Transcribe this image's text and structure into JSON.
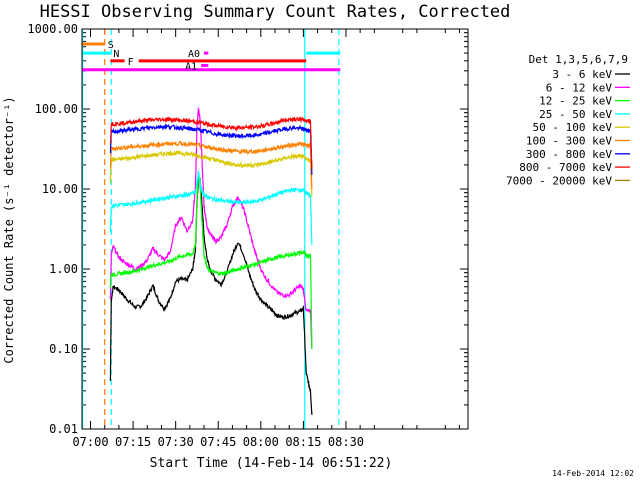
{
  "chart_data": {
    "type": "line",
    "title": "HESSI Observing Summary Count Rates, Corrected",
    "xlabel": "Start Time (14-Feb-14 06:51:22)",
    "ylabel": "Corrected Count Rate (s⁻¹ detector⁻¹)",
    "yscale": "log",
    "ylim": [
      0.01,
      1000
    ],
    "xlim_minutes": [
      -3,
      133
    ],
    "y_tick_labels": [
      "1000.00",
      "100.00",
      "10.00",
      "1.00",
      "0.10",
      "0.01"
    ],
    "x_tick_labels": [
      {
        "label": "07:00",
        "t": 0
      },
      {
        "label": "07:15",
        "t": 15
      },
      {
        "label": "07:30",
        "t": 30
      },
      {
        "label": "07:45",
        "t": 45
      },
      {
        "label": "08:00",
        "t": 60
      },
      {
        "label": "08:15",
        "t": 75
      },
      {
        "label": "08:30",
        "t": 90
      }
    ],
    "legend_title": "Det 1,3,5,6,7,9",
    "legend_placement": "right",
    "series": [
      {
        "name": "3 - 6 keV",
        "color": "#000000",
        "x": [
          7,
          7.3,
          8,
          10,
          12,
          14,
          16,
          18,
          20,
          22,
          24,
          26,
          28,
          30,
          32,
          34,
          36,
          37,
          37.5,
          38,
          38.5,
          39,
          39.5,
          40,
          41,
          42,
          44,
          46,
          48,
          50,
          52,
          54,
          56,
          58,
          60,
          62,
          64,
          66,
          68,
          70,
          72,
          74,
          75,
          76,
          77,
          77.5,
          78
        ],
        "y": [
          0.04,
          0.4,
          0.6,
          0.55,
          0.45,
          0.38,
          0.33,
          0.35,
          0.45,
          0.62,
          0.4,
          0.32,
          0.42,
          0.7,
          0.75,
          0.72,
          1.0,
          1.8,
          7,
          13,
          14,
          9,
          5,
          2.5,
          1.4,
          1.0,
          0.75,
          0.65,
          0.9,
          1.5,
          2.2,
          1.5,
          0.85,
          0.55,
          0.42,
          0.35,
          0.3,
          0.26,
          0.25,
          0.26,
          0.28,
          0.3,
          0.32,
          0.05,
          0.035,
          0.03,
          0.015
        ]
      },
      {
        "name": "6 - 12 keV",
        "color": "#ff00ff",
        "x": [
          7,
          7.3,
          8,
          10,
          12,
          14,
          16,
          18,
          20,
          22,
          24,
          26,
          28,
          30,
          32,
          34,
          36,
          37,
          37.5,
          38,
          38.5,
          39,
          39.5,
          40,
          41,
          42,
          44,
          46,
          48,
          50,
          52,
          54,
          56,
          58,
          60,
          62,
          64,
          66,
          68,
          70,
          72,
          74,
          75,
          76,
          77,
          77.5,
          78
        ],
        "y": [
          0.4,
          1.5,
          1.9,
          1.4,
          1.2,
          1.1,
          1.0,
          1.1,
          1.3,
          1.8,
          1.5,
          1.3,
          1.6,
          3.5,
          4.5,
          3,
          4,
          11,
          60,
          100,
          80,
          40,
          15,
          6,
          3.5,
          2.8,
          2.2,
          2.5,
          3.5,
          6,
          8,
          5.5,
          3,
          1.6,
          1.0,
          0.75,
          0.6,
          0.5,
          0.47,
          0.47,
          0.55,
          0.62,
          0.55,
          0.3,
          0.3,
          0.3,
          0.1
        ]
      },
      {
        "name": "12 - 25 keV",
        "color": "#00ff00",
        "x": [
          7,
          7.3,
          8,
          10,
          12,
          14,
          16,
          18,
          20,
          22,
          24,
          26,
          28,
          30,
          32,
          34,
          36,
          37,
          37.5,
          38,
          38.5,
          39,
          39.5,
          40,
          41,
          42,
          44,
          46,
          48,
          50,
          52,
          54,
          56,
          58,
          60,
          62,
          64,
          66,
          68,
          70,
          72,
          74,
          75,
          76,
          77,
          77.5,
          78
        ],
        "y": [
          0.6,
          0.85,
          0.85,
          0.87,
          0.9,
          0.92,
          0.95,
          1.0,
          1.05,
          1.1,
          1.15,
          1.2,
          1.25,
          1.35,
          1.45,
          1.5,
          1.55,
          2,
          8,
          16,
          12,
          6,
          3,
          1.5,
          1.05,
          0.95,
          0.9,
          0.88,
          0.9,
          0.95,
          1.0,
          1.05,
          1.1,
          1.15,
          1.2,
          1.28,
          1.35,
          1.4,
          1.45,
          1.5,
          1.55,
          1.6,
          1.6,
          1.5,
          1.45,
          1.5,
          0.1
        ]
      },
      {
        "name": "25 - 50 keV",
        "color": "#00ffff",
        "x": [
          7,
          7.3,
          8,
          10,
          12,
          14,
          16,
          18,
          20,
          22,
          24,
          26,
          28,
          30,
          32,
          34,
          36,
          37,
          37.5,
          38,
          38.5,
          39,
          39.5,
          40,
          41,
          42,
          44,
          46,
          48,
          50,
          52,
          54,
          56,
          58,
          60,
          62,
          64,
          66,
          68,
          70,
          72,
          74,
          75,
          76,
          77,
          77.5,
          78
        ],
        "y": [
          3,
          6,
          6.2,
          6.3,
          6.4,
          6.5,
          6.7,
          6.9,
          7.1,
          7.3,
          7.5,
          7.7,
          7.9,
          8.1,
          8.3,
          8.5,
          8.8,
          9,
          12,
          16,
          13,
          10,
          9,
          8.5,
          8,
          7.7,
          7.4,
          7.2,
          7.0,
          6.9,
          6.8,
          6.8,
          6.9,
          7.0,
          7.3,
          7.7,
          8.2,
          8.7,
          9.2,
          9.6,
          9.8,
          9.7,
          9.5,
          9.0,
          8.5,
          8.0,
          2
        ]
      },
      {
        "name": "50 - 100 keV",
        "color": "#d8c800",
        "x": [
          7,
          7.3,
          8,
          10,
          12,
          14,
          16,
          18,
          20,
          22,
          24,
          26,
          28,
          30,
          32,
          34,
          36,
          38,
          40,
          42,
          44,
          46,
          48,
          50,
          52,
          54,
          56,
          58,
          60,
          62,
          64,
          66,
          68,
          70,
          72,
          74,
          75,
          76,
          77,
          77.5,
          78
        ],
        "y": [
          12,
          23,
          23,
          23.5,
          24,
          24.5,
          25,
          25.5,
          26,
          26.5,
          27,
          27.5,
          28,
          28,
          28,
          27.5,
          27,
          26,
          25,
          24,
          23,
          22,
          21,
          20.5,
          20,
          19.8,
          19.8,
          20,
          20.5,
          21,
          22,
          23,
          24,
          25,
          25.5,
          25.5,
          25,
          24,
          23,
          22,
          8
        ]
      },
      {
        "name": "100 - 300 keV",
        "color": "#ff8000",
        "x": [
          7,
          7.3,
          8,
          10,
          12,
          14,
          16,
          18,
          20,
          22,
          24,
          26,
          28,
          30,
          32,
          34,
          36,
          38,
          40,
          42,
          44,
          46,
          48,
          50,
          52,
          54,
          56,
          58,
          60,
          62,
          64,
          66,
          68,
          70,
          72,
          74,
          75,
          76,
          77,
          77.5,
          78
        ],
        "y": [
          18,
          32,
          32,
          32.5,
          33,
          33.5,
          34,
          34.5,
          35,
          35.5,
          36,
          36.5,
          37,
          37,
          37,
          36.5,
          36,
          35,
          34,
          33,
          32,
          31,
          30.5,
          30,
          29.5,
          29.3,
          29.3,
          29.5,
          30,
          31,
          32,
          33,
          34,
          35,
          36,
          36.5,
          36,
          35.5,
          35,
          34,
          10
        ]
      },
      {
        "name": "300 - 800 keV",
        "color": "#0000ff",
        "x": [
          7,
          7.3,
          8,
          10,
          12,
          14,
          16,
          18,
          20,
          22,
          24,
          26,
          28,
          30,
          32,
          34,
          36,
          38,
          40,
          42,
          44,
          46,
          48,
          50,
          52,
          54,
          56,
          58,
          60,
          62,
          64,
          66,
          68,
          70,
          72,
          74,
          75,
          76,
          77,
          77.5,
          78
        ],
        "y": [
          28,
          52,
          52,
          53,
          54,
          55,
          56,
          57,
          58,
          59,
          60,
          60,
          60,
          59,
          58,
          57,
          56,
          55,
          53,
          51,
          49,
          48,
          47,
          46.5,
          46,
          46,
          46.5,
          47,
          48,
          50,
          52,
          54,
          56,
          57.5,
          58,
          57,
          56,
          55,
          54,
          53,
          15
        ]
      },
      {
        "name": "800 - 7000 keV",
        "color": "#ff0000",
        "x": [
          7,
          7.3,
          8,
          10,
          12,
          14,
          16,
          18,
          20,
          22,
          24,
          26,
          28,
          30,
          32,
          34,
          36,
          38,
          40,
          42,
          44,
          46,
          48,
          50,
          52,
          54,
          56,
          58,
          60,
          62,
          64,
          66,
          68,
          70,
          72,
          74,
          75,
          76,
          77,
          77.5,
          78
        ],
        "y": [
          35,
          65,
          65,
          66,
          67,
          68,
          70,
          71,
          72,
          73,
          74,
          74,
          74,
          73,
          72,
          71,
          70,
          68,
          66,
          64,
          62,
          61,
          60,
          59,
          58.5,
          58.5,
          59,
          60,
          61,
          63,
          66,
          69,
          72,
          74,
          75,
          74,
          73,
          72,
          71,
          70,
          18
        ]
      },
      {
        "name": "7000 - 20000 keV",
        "color": "#a08000",
        "x": [],
        "y": []
      }
    ],
    "attenuator_states": [
      {
        "label": "A0",
        "color": "#ff00ff",
        "t_start": 40,
        "t_end": 41.5,
        "level": 500
      },
      {
        "label": "A1",
        "color": "#ff00ff",
        "t_start": 39,
        "t_end": 41.5,
        "level": 350
      }
    ],
    "flag_bars": [
      {
        "label": "S",
        "color": "#ff7f00",
        "segments": [
          [
            -3,
            5
          ]
        ],
        "level": 650
      },
      {
        "label": "N",
        "color": "#00ffff",
        "segments": [
          [
            -3,
            7
          ],
          [
            76,
            88
          ]
        ],
        "level": 500
      },
      {
        "label": "F",
        "color": "#ff0000",
        "segments": [
          [
            7,
            12
          ],
          [
            17,
            76
          ]
        ],
        "level": 400
      },
      {
        "label": "",
        "color": "#ff00ff",
        "segments": [
          [
            -3,
            88
          ]
        ],
        "level": 310
      }
    ],
    "vlines": [
      {
        "t": 5,
        "color": "#ff7f00",
        "style": "dashed"
      },
      {
        "t": 7.3,
        "color": "#00ffff",
        "style": "dashed"
      },
      {
        "t": 75.5,
        "color": "#00ffff",
        "style": "solid"
      },
      {
        "t": 87.5,
        "color": "#00ffff",
        "style": "dashed"
      },
      {
        "t": -2.8,
        "color": "#00ffff",
        "style": "solid"
      }
    ],
    "grid": false
  },
  "footer": {
    "timestamp": "14-Feb-2014 12:02"
  }
}
